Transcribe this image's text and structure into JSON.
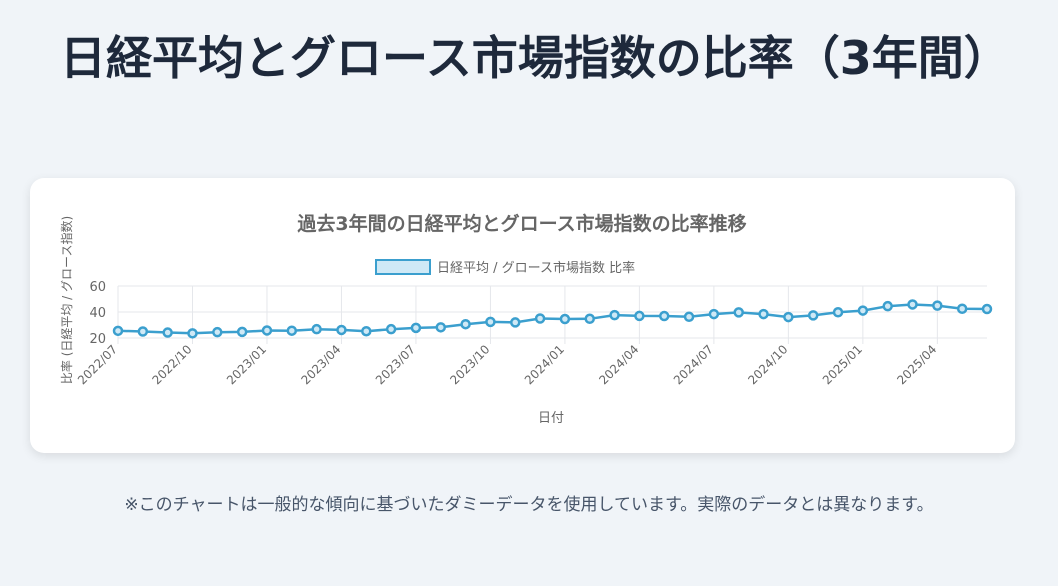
{
  "page": {
    "title": "日経平均とグロース市場指数の比率（3年間）",
    "footnote": "※このチャートは一般的な傾向に基づいたダミーデータを使用しています。実際のデータとは異なります。"
  },
  "colors": {
    "background": "#f0f4f8",
    "card": "#ffffff",
    "title": "#1e293b",
    "line": "#3b9fce",
    "point_fill": "#cfe9f6",
    "grid": "#e5e7eb",
    "axis_text": "#666666"
  },
  "chart_data": {
    "type": "line",
    "title": "過去3年間の日経平均とグロース市場指数の比率推移",
    "xlabel": "日付",
    "ylabel": "比率 (日経平均 / グロース指数)",
    "legend": {
      "label": "日経平均 / グロース市場指数 比率",
      "position": "top"
    },
    "x_ticks": [
      "2022/07",
      "2022/10",
      "2023/01",
      "2023/04",
      "2023/07",
      "2023/10",
      "2024/01",
      "2024/04",
      "2024/07",
      "2024/10",
      "2025/01",
      "2025/04"
    ],
    "ylim": [
      20,
      60
    ],
    "y_ticks": [
      20,
      40,
      60
    ],
    "grid": true,
    "x": [
      "2022/07",
      "2022/08",
      "2022/09",
      "2022/10",
      "2022/11",
      "2022/12",
      "2023/01",
      "2023/02",
      "2023/03",
      "2023/04",
      "2023/05",
      "2023/06",
      "2023/07",
      "2023/08",
      "2023/09",
      "2023/10",
      "2023/11",
      "2023/12",
      "2024/01",
      "2024/02",
      "2024/03",
      "2024/04",
      "2024/05",
      "2024/06",
      "2024/07",
      "2024/08",
      "2024/09",
      "2024/10",
      "2024/11",
      "2024/12",
      "2025/01",
      "2025/02",
      "2025/03",
      "2025/04",
      "2025/05",
      "2025/06"
    ],
    "series": [
      {
        "name": "日経平均 / グロース市場指数 比率",
        "values": [
          25.5,
          25,
          24.2,
          23.6,
          24.5,
          24.7,
          25.8,
          25.6,
          26.8,
          26.2,
          25.2,
          26.8,
          27.8,
          28.2,
          30.6,
          32.4,
          32,
          35,
          34.6,
          34.8,
          37.6,
          37,
          36.9,
          36.3,
          38.4,
          39.7,
          38.4,
          36.1,
          37.4,
          39.8,
          41.1,
          44.5,
          45.8,
          44.9,
          42.5,
          42.3
        ]
      }
    ]
  }
}
